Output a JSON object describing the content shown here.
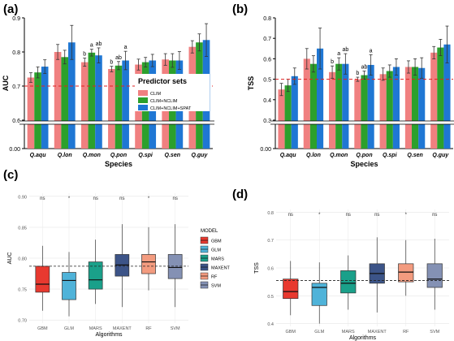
{
  "chart_data": [
    {
      "panel_label": "(a)",
      "type": "bar",
      "ylabel": "AUC",
      "xlabel": "Species",
      "ylim": [
        0.0,
        0.9
      ],
      "axis_break": [
        0.1,
        0.6
      ],
      "yticks": [
        0.0,
        0.6,
        0.7,
        0.8,
        0.9
      ],
      "ytick_labels": [
        "0.00",
        "0.6",
        "0.7",
        "0.8",
        "0.9"
      ],
      "reference_line": 0.7,
      "categories": [
        "Q.aqu",
        "Q.lon",
        "Q.mon",
        "Q.pon",
        "Q.spi",
        "Q.sen",
        "Q.guy"
      ],
      "series": [
        {
          "name": "CLIM",
          "color": "#f08080",
          "values": [
            0.725,
            0.8,
            0.77,
            0.75,
            0.763,
            0.778,
            0.815
          ],
          "errors": [
            0.014,
            0.022,
            0.012,
            0.008,
            0.016,
            0.017,
            0.018
          ]
        },
        {
          "name": "CLIM+NCLIM",
          "color": "#2ca02c",
          "values": [
            0.74,
            0.785,
            0.798,
            0.76,
            0.77,
            0.775,
            0.828
          ],
          "errors": [
            0.016,
            0.02,
            0.01,
            0.012,
            0.014,
            0.02,
            0.025
          ]
        },
        {
          "name": "CLIM+NCLIM+SPAT",
          "color": "#1f77d4",
          "values": [
            0.757,
            0.828,
            0.79,
            0.775,
            0.775,
            0.775,
            0.835
          ],
          "errors": [
            0.02,
            0.05,
            0.022,
            0.027,
            0.018,
            0.026,
            0.048
          ]
        }
      ],
      "letters": [
        {
          "category": "Q.mon",
          "series": 0,
          "text": "b"
        },
        {
          "category": "Q.mon",
          "series": 1,
          "text": "a"
        },
        {
          "category": "Q.mon",
          "series": 2,
          "text": "ab"
        },
        {
          "category": "Q.pon",
          "series": 0,
          "text": "b"
        },
        {
          "category": "Q.pon",
          "series": 1,
          "text": "ab"
        },
        {
          "category": "Q.pon",
          "series": 2,
          "text": "a"
        }
      ],
      "legend_title": "Predictor sets",
      "legend_position": "right"
    },
    {
      "panel_label": "(b)",
      "type": "bar",
      "ylabel": "TSS",
      "xlabel": "Species",
      "ylim": [
        0.0,
        0.8
      ],
      "axis_break": [
        0.1,
        0.3
      ],
      "yticks": [
        0.0,
        0.3,
        0.4,
        0.5,
        0.6,
        0.7,
        0.8
      ],
      "ytick_labels": [
        "0.00",
        "0.3",
        "0.4",
        "0.5",
        "0.6",
        "0.7",
        "0.8"
      ],
      "reference_line": 0.5,
      "categories": [
        "Q.aqu",
        "Q.lon",
        "Q.mon",
        "Q.pon",
        "Q.spi",
        "Q.sen",
        "Q.guy"
      ],
      "series": [
        {
          "name": "CLIM",
          "color": "#f08080",
          "values": [
            0.45,
            0.6,
            0.535,
            0.5,
            0.525,
            0.56,
            0.63
          ],
          "errors": [
            0.03,
            0.05,
            0.03,
            0.01,
            0.03,
            0.03,
            0.03
          ]
        },
        {
          "name": "CLIM+NCLIM",
          "color": "#2ca02c",
          "values": [
            0.47,
            0.575,
            0.575,
            0.52,
            0.54,
            0.56,
            0.655
          ],
          "errors": [
            0.03,
            0.04,
            0.03,
            0.02,
            0.03,
            0.04,
            0.04
          ]
        },
        {
          "name": "CLIM+NCLIM+SPAT",
          "color": "#1f77d4",
          "values": [
            0.515,
            0.65,
            0.575,
            0.57,
            0.56,
            0.555,
            0.67
          ],
          "errors": [
            0.04,
            0.1,
            0.05,
            0.05,
            0.04,
            0.05,
            0.09
          ]
        }
      ],
      "letters": [
        {
          "category": "Q.mon",
          "series": 0,
          "text": "b"
        },
        {
          "category": "Q.mon",
          "series": 1,
          "text": "a"
        },
        {
          "category": "Q.mon",
          "series": 2,
          "text": "ab"
        },
        {
          "category": "Q.pon",
          "series": 0,
          "text": "b"
        },
        {
          "category": "Q.pon",
          "series": 1,
          "text": "ab"
        },
        {
          "category": "Q.pon",
          "series": 2,
          "text": "a"
        }
      ]
    },
    {
      "panel_label": "(c)",
      "type": "box",
      "ylabel": "AUC",
      "xlabel": "Algorithms",
      "ylim": [
        0.695,
        0.905
      ],
      "yticks": [
        0.7,
        0.75,
        0.8,
        0.85,
        0.9
      ],
      "ytick_labels": [
        "0.70",
        "0.75",
        "0.80",
        "0.85",
        "0.90"
      ],
      "reference_line": 0.787,
      "categories": [
        "GBM",
        "GLM",
        "MARS",
        "MAXENT",
        "RF",
        "SVM"
      ],
      "colors": [
        "#e8392f",
        "#4fb3d9",
        "#1aa08a",
        "#3c5488",
        "#f39b7f",
        "#8491b4"
      ],
      "boxes": [
        {
          "min": 0.715,
          "q1": 0.745,
          "median": 0.758,
          "q3": 0.787,
          "max": 0.82
        },
        {
          "min": 0.706,
          "q1": 0.733,
          "median": 0.764,
          "q3": 0.777,
          "max": 0.81
        },
        {
          "min": 0.726,
          "q1": 0.75,
          "median": 0.765,
          "q3": 0.794,
          "max": 0.83
        },
        {
          "min": 0.721,
          "q1": 0.771,
          "median": 0.789,
          "q3": 0.806,
          "max": 0.855
        },
        {
          "min": 0.748,
          "q1": 0.775,
          "median": 0.794,
          "q3": 0.806,
          "max": 0.85
        },
        {
          "min": 0.721,
          "q1": 0.767,
          "median": 0.785,
          "q3": 0.806,
          "max": 0.855
        }
      ],
      "top_labels": [
        "ns",
        "*",
        "ns",
        "ns",
        "*",
        "ns"
      ],
      "legend_title": "MODEL",
      "legend_entries": [
        "GBM",
        "GLM",
        "MARS",
        "MAXENT",
        "RF",
        "SVM"
      ],
      "legend_position": "right"
    },
    {
      "panel_label": "(d)",
      "type": "box",
      "ylabel": "TSS",
      "xlabel": "Algorithms",
      "ylim": [
        0.39,
        0.81
      ],
      "yticks": [
        0.4,
        0.5,
        0.6,
        0.7,
        0.8
      ],
      "ytick_labels": [
        "0.4",
        "0.5",
        "0.6",
        "0.7",
        "0.8"
      ],
      "reference_line": 0.555,
      "categories": [
        "GBM",
        "GLM",
        "MARS",
        "MAXENT",
        "RF",
        "SVM"
      ],
      "colors": [
        "#e8392f",
        "#4fb3d9",
        "#1aa08a",
        "#3c5488",
        "#f39b7f",
        "#8491b4"
      ],
      "boxes": [
        {
          "min": 0.43,
          "q1": 0.49,
          "median": 0.515,
          "q3": 0.56,
          "max": 0.625
        },
        {
          "min": 0.4,
          "q1": 0.465,
          "median": 0.53,
          "q3": 0.545,
          "max": 0.62
        },
        {
          "min": 0.45,
          "q1": 0.51,
          "median": 0.545,
          "q3": 0.59,
          "max": 0.645
        },
        {
          "min": 0.44,
          "q1": 0.545,
          "median": 0.58,
          "q3": 0.615,
          "max": 0.71
        },
        {
          "min": 0.5,
          "q1": 0.55,
          "median": 0.585,
          "q3": 0.615,
          "max": 0.7
        },
        {
          "min": 0.45,
          "q1": 0.53,
          "median": 0.56,
          "q3": 0.615,
          "max": 0.705
        }
      ],
      "top_labels": [
        "ns",
        "*",
        "ns",
        "ns",
        "*",
        "ns"
      ]
    }
  ]
}
